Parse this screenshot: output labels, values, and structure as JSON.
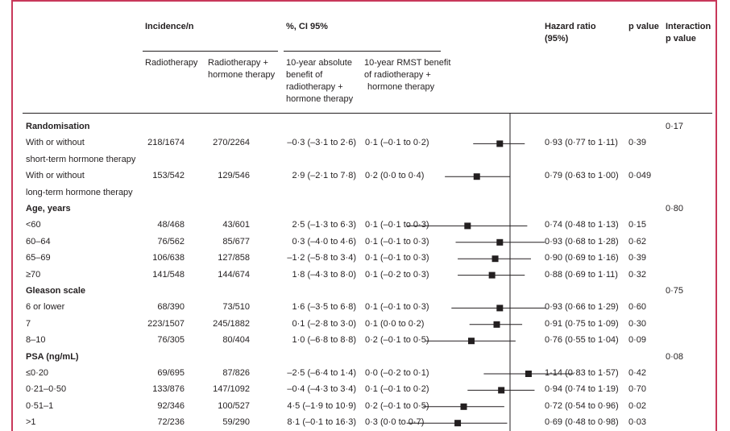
{
  "header": {
    "incidence": "Incidence/n",
    "pct_ci": "%, CI 95%",
    "hr": "Hazard ratio",
    "hr2": "(95%)",
    "pval": "p value",
    "interaction": "Interaction",
    "interaction2": "p value",
    "sub": {
      "rt": "Radiotherapy",
      "rth1": "Radiotherapy +",
      "rth2": "hormone therapy",
      "abs1": "10-year absolute",
      "abs2": "benefit of",
      "abs3": "radiotherapy +",
      "abs4": "hormone therapy",
      "rmst1": "10-year RMST benefit",
      "rmst2": "of radiotherapy +",
      "rmst3": "hormone therapy"
    }
  },
  "rows": [
    {
      "type": "section",
      "label": "Randomisation",
      "interaction": "0·17"
    },
    {
      "type": "row",
      "label": "With or without",
      "rt": "218/1674",
      "rth": "270/2264",
      "abs": "–0·3 (–3·1 to 2·6)",
      "rmst": "0·1 (–0·1 to 0·2)",
      "hr_text": "0·93 (0·77 to 1·11)",
      "p": "0·39",
      "hr": 0.93,
      "lo": 0.77,
      "hi": 1.11
    },
    {
      "type": "cont",
      "label": "short-term hormone therapy"
    },
    {
      "type": "row",
      "label": "With or without",
      "rt": "153/542",
      "rth": "129/546",
      "abs": "2·9 (–2·1 to 7·8)",
      "rmst": "0·2 (0·0 to 0·4)",
      "hr_text": "0·79 (0·63 to 1·00)",
      "p": "0·049",
      "hr": 0.79,
      "lo": 0.63,
      "hi": 1.0
    },
    {
      "type": "cont",
      "label": "long-term hormone therapy"
    },
    {
      "type": "section",
      "label": "Age, years",
      "interaction": "0·80"
    },
    {
      "type": "row",
      "label": "<60",
      "rt": "48/468",
      "rth": "43/601",
      "abs": "2·5 (–1·3 to 6·3)",
      "rmst": "0·1 (–0·1 to 0·3)",
      "hr_text": "0·74 (0·48 to 1·13)",
      "p": "0·15",
      "hr": 0.74,
      "lo": 0.48,
      "hi": 1.13
    },
    {
      "type": "row",
      "label": "60–64",
      "rt": "76/562",
      "rth": "85/677",
      "abs": "0·3 (–4·0 to 4·6)",
      "rmst": "0·1 (–0·1 to 0·3)",
      "hr_text": "0·93 (0·68 to 1·28)",
      "p": "0·62",
      "hr": 0.93,
      "lo": 0.68,
      "hi": 1.28
    },
    {
      "type": "row",
      "label": "65–69",
      "rt": "106/638",
      "rth": "127/858",
      "abs": "–1·2 (–5·8 to 3·4)",
      "rmst": "0·1 (–0·1 to 0·3)",
      "hr_text": "0·90 (0·69 to 1·16)",
      "p": "0·39",
      "hr": 0.9,
      "lo": 0.69,
      "hi": 1.16
    },
    {
      "type": "row",
      "label": "≥70",
      "rt": "141/548",
      "rth": "144/674",
      "abs": "1·8 (–4·3 to 8·0)",
      "rmst": "0·1 (–0·2 to 0·3)",
      "hr_text": "0·88 (0·69 to 1·11)",
      "p": "0·32",
      "hr": 0.88,
      "lo": 0.69,
      "hi": 1.11
    },
    {
      "type": "section",
      "label": "Gleason scale",
      "interaction": "0·75"
    },
    {
      "type": "row",
      "label": "6 or lower",
      "rt": "68/390",
      "rth": "73/510",
      "abs": "1·6 (–3·5 to 6·8)",
      "rmst": "0·1 (–0·1 to 0·3)",
      "hr_text": "0·93 (0·66 to 1·29)",
      "p": "0·60",
      "hr": 0.93,
      "lo": 0.66,
      "hi": 1.29
    },
    {
      "type": "row",
      "label": "7",
      "rt": "223/1507",
      "rth": "245/1882",
      "abs": "0·1 (–2·8 to 3·0)",
      "rmst": "0·1 (0·0 to 0·2)",
      "hr_text": "0·91 (0·75 to 1·09)",
      "p": "0·30",
      "hr": 0.91,
      "lo": 0.75,
      "hi": 1.09
    },
    {
      "type": "row",
      "label": "8–10",
      "rt": "76/305",
      "rth": "80/404",
      "abs": "1·0 (–6·8 to 8·8)",
      "rmst": "0·2 (–0·1 to 0·5)",
      "hr_text": "0·76 (0·55 to 1·04)",
      "p": "0·09",
      "hr": 0.76,
      "lo": 0.55,
      "hi": 1.04
    },
    {
      "type": "section",
      "label": "PSA (ng/mL)",
      "interaction": "0·08"
    },
    {
      "type": "row",
      "label": "≤0·20",
      "rt": "69/695",
      "rth": "87/826",
      "abs": "–2·5 (–6·4 to 1·4)",
      "rmst": "0·0 (–0·2 to 0·1)",
      "hr_text": "1·14 (0·83 to 1·57)",
      "p": "0·42",
      "hr": 1.14,
      "lo": 0.83,
      "hi": 1.57
    },
    {
      "type": "row",
      "label": "0·21–0·50",
      "rt": "133/876",
      "rth": "147/1092",
      "abs": "–0·4 (–4·3 to 3·4)",
      "rmst": "0·1 (–0·1 to 0·2)",
      "hr_text": "0·94 (0·74 to 1·19)",
      "p": "0·70",
      "hr": 0.94,
      "lo": 0.74,
      "hi": 1.19
    },
    {
      "type": "row",
      "label": "0·51–1",
      "rt": "92/346",
      "rth": "100/527",
      "abs": "4·5 (–1·9 to 10·9)",
      "rmst": "0·2 (–0·1 to 0·5)",
      "hr_text": "0·72 (0·54 to 0·96)",
      "p": "0·02",
      "hr": 0.72,
      "lo": 0.54,
      "hi": 0.96
    },
    {
      "type": "row",
      "label": ">1",
      "rt": "72/236",
      "rth": "59/290",
      "abs": "8·1 (–0·1 to 16·3)",
      "rmst": "0·3 (0·0 to 0·7)",
      "hr_text": "0·69 (0·48 to 0·98)",
      "p": "0·03",
      "hr": 0.69,
      "lo": 0.48,
      "hi": 0.98
    }
  ],
  "colors": {
    "frame": "#c8385a",
    "ink": "#231f20"
  }
}
